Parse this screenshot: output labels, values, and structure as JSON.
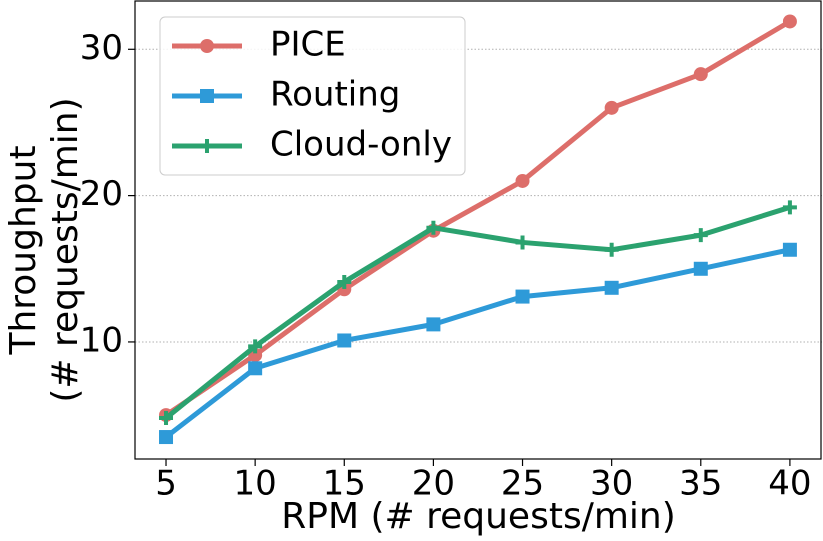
{
  "chart_data": {
    "type": "line",
    "xlabel": "RPM (# requests/min)",
    "ylabel": [
      "Throughput",
      "(# requests/min)"
    ],
    "x": [
      5,
      10,
      15,
      20,
      25,
      30,
      35,
      40
    ],
    "series": [
      {
        "name": "PICE",
        "color": "#dd6e6a",
        "marker": "circle",
        "values": [
          5.0,
          9.1,
          13.6,
          17.6,
          21.0,
          26.0,
          28.3,
          31.9
        ]
      },
      {
        "name": "Routing",
        "color": "#2e9ad8",
        "marker": "square",
        "values": [
          3.5,
          8.2,
          10.1,
          11.2,
          13.1,
          13.7,
          15.0,
          16.3
        ]
      },
      {
        "name": "Cloud-only",
        "color": "#2ba26f",
        "marker": "plus",
        "values": [
          4.8,
          9.7,
          14.1,
          17.8,
          16.8,
          16.3,
          17.3,
          19.2
        ]
      }
    ],
    "xlim": [
      3.26,
      41.8
    ],
    "xticks": [
      5,
      10,
      15,
      20,
      25,
      30,
      35,
      40
    ],
    "ylim": [
      2.0,
      33.3
    ],
    "yticks": [
      10,
      20,
      30
    ],
    "grid": true,
    "legend": "upper left"
  }
}
